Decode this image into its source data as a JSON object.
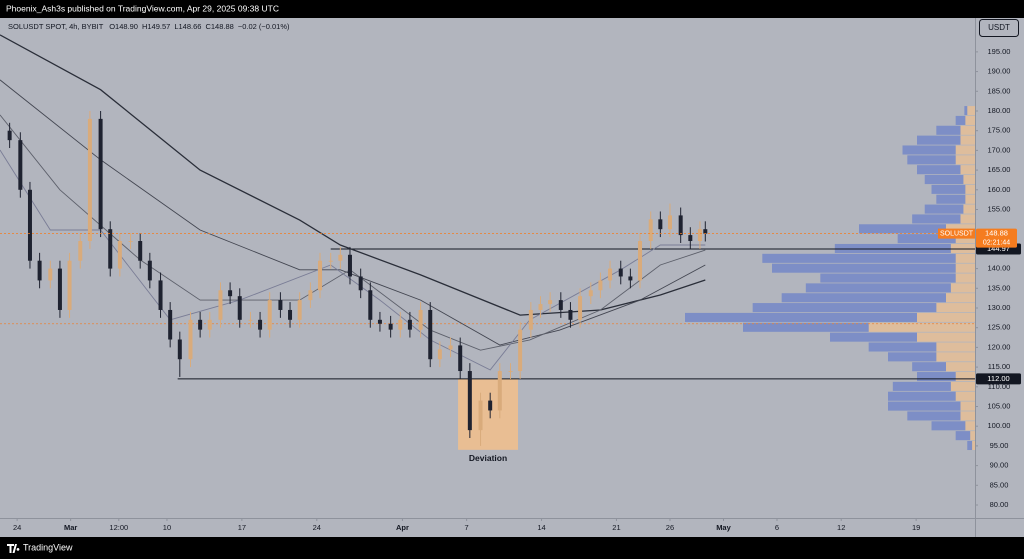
{
  "header": {
    "publisher": "Phoenix_Ash3s published on TradingView.com, Apr 29, 2025 09:38 UTC"
  },
  "legend": {
    "symbol": "SOLUSDT SPOT, 4h, BYBIT",
    "open": "O148.90",
    "high": "H149.57",
    "low": "L148.66",
    "close": "C148.88",
    "change": "−0.02 (−0.01%)"
  },
  "currency": "USDT",
  "footer": {
    "brand": "TradingView"
  },
  "chart_data": {
    "type": "candlestick",
    "up_color": "#d9ab7b",
    "down_color": "#1e2230",
    "x": [
      -0.7,
      0.3,
      1.2,
      2.1,
      3.1,
      4.0,
      4.9,
      5.9,
      6.8,
      7.8,
      8.7,
      9.6,
      10.6,
      11.5,
      12.4,
      13.4,
      14.3,
      15.2,
      16.2,
      17.1,
      18.0,
      19.0,
      19.9,
      20.8,
      21.8,
      22.7,
      23.6,
      24.6,
      25.5,
      26.4,
      27.4,
      28.3,
      29.3,
      30.2,
      31.1,
      32.1,
      33.0,
      33.9,
      34.9,
      35.8,
      36.7,
      37.7,
      38.6,
      39.5,
      40.5,
      41.4,
      42.3,
      43.3,
      44.2,
      45.1,
      46.1,
      47.0,
      48.0,
      48.9,
      49.8,
      50.8,
      51.7,
      52.6,
      53.6,
      54.5,
      55.4,
      56.4,
      57.3,
      58.2,
      59.2,
      60.1,
      61.0,
      62.0,
      62.9,
      63.8,
      64.3
    ],
    "open": [
      175,
      172.6,
      160,
      142,
      137,
      140,
      129.5,
      142,
      147,
      178,
      150,
      140,
      147,
      147,
      142,
      137,
      129.5,
      122,
      117,
      127,
      124.5,
      127,
      134.5,
      133,
      127,
      127,
      124.5,
      132,
      129.5,
      127,
      132,
      134.5,
      142,
      142,
      143.5,
      138,
      134.5,
      127,
      126,
      124.5,
      127,
      124.5,
      129.5,
      117,
      119.5,
      120.5,
      114,
      99,
      106.5,
      104,
      114,
      114,
      124.5,
      129.5,
      131,
      132,
      129.5,
      127,
      133,
      134.5,
      137,
      140,
      138,
      137,
      147,
      152.5,
      150,
      153.5,
      148.5,
      147,
      150
    ],
    "high": [
      177,
      174.6,
      162,
      144,
      142,
      142,
      144,
      149,
      180,
      180,
      152,
      149,
      149,
      149,
      144,
      139,
      131.5,
      124,
      129,
      129,
      129,
      136.5,
      136.5,
      135,
      129,
      129,
      134,
      134,
      131.5,
      134,
      136.5,
      144,
      144,
      145.5,
      145.5,
      140,
      136.5,
      129,
      128,
      129,
      129,
      131.5,
      131.5,
      121.5,
      122.5,
      122.5,
      116,
      108.5,
      108.5,
      116,
      116,
      126.5,
      131.5,
      133,
      134,
      134,
      131.5,
      135,
      136.5,
      139,
      142,
      142,
      140,
      149,
      154.5,
      154.5,
      156.5,
      155.5,
      150.5,
      152,
      152
    ],
    "low": [
      170.6,
      158,
      140,
      135,
      135,
      127.5,
      127.5,
      140,
      145,
      148,
      138,
      138,
      145,
      140,
      135,
      127.5,
      120,
      112.5,
      115,
      122.5,
      122.5,
      125,
      131,
      125,
      125,
      122.5,
      122.5,
      127.5,
      125,
      125,
      130,
      132.5,
      140,
      140,
      136,
      132.5,
      125,
      124,
      122.5,
      122.5,
      122.5,
      122.5,
      115,
      115,
      117.5,
      112,
      97,
      95,
      102,
      102,
      112,
      112,
      122.5,
      127.5,
      129,
      127.5,
      125,
      125,
      131,
      132.5,
      135,
      136,
      135,
      135,
      145,
      148,
      148,
      146.5,
      145,
      145,
      146.88
    ],
    "close": [
      172.6,
      160,
      142,
      137,
      140,
      129.5,
      142,
      147,
      178,
      150,
      140,
      147,
      147,
      142,
      137,
      129.5,
      122,
      117,
      127,
      124.5,
      127,
      134.5,
      133,
      127,
      127,
      124.5,
      132,
      129.5,
      127,
      132,
      134.5,
      142,
      142,
      143.5,
      138,
      134.5,
      127,
      126,
      124.5,
      127,
      124.5,
      129.5,
      117,
      119.5,
      120.5,
      114,
      99,
      106.5,
      104,
      114,
      114,
      124.5,
      129.5,
      131,
      132,
      129.5,
      127,
      133,
      134.5,
      137,
      140,
      138,
      137,
      147,
      152.5,
      150,
      153.5,
      148.5,
      147,
      150,
      148.88
    ],
    "xlim": [
      -1.6,
      89.5
    ],
    "xticks": [
      {
        "value": 0,
        "label": "24"
      },
      {
        "value": 5,
        "label": "Mar"
      },
      {
        "value": 9.5,
        "label": "12:00"
      },
      {
        "value": 14,
        "label": "10"
      },
      {
        "value": 21,
        "label": "17"
      },
      {
        "value": 28,
        "label": "24"
      },
      {
        "value": 36,
        "label": "Apr"
      },
      {
        "value": 42,
        "label": "7"
      },
      {
        "value": 49,
        "label": "14"
      },
      {
        "value": 56,
        "label": "21"
      },
      {
        "value": 61,
        "label": "26"
      },
      {
        "value": 66,
        "label": "May"
      },
      {
        "value": 71,
        "label": "6"
      },
      {
        "value": 77,
        "label": "12"
      },
      {
        "value": 84,
        "label": "19"
      }
    ],
    "ylim": [
      76.7,
      203.6
    ],
    "yticks": [
      {
        "value": 80,
        "label": "80.00"
      },
      {
        "value": 85,
        "label": "85.00"
      },
      {
        "value": 90,
        "label": "90.00"
      },
      {
        "value": 95,
        "label": "95.00"
      },
      {
        "value": 100,
        "label": "100.00"
      },
      {
        "value": 105,
        "label": "105.00"
      },
      {
        "value": 110,
        "label": "110.00"
      },
      {
        "value": 115,
        "label": "115.00"
      },
      {
        "value": 120,
        "label": "120.00"
      },
      {
        "value": 125,
        "label": "125.00"
      },
      {
        "value": 130,
        "label": "130.00"
      },
      {
        "value": 135,
        "label": "135.00"
      },
      {
        "value": 140,
        "label": "140.00"
      },
      {
        "value": 155,
        "label": "155.00"
      },
      {
        "value": 160,
        "label": "160.00"
      },
      {
        "value": 165,
        "label": "165.00"
      },
      {
        "value": 170,
        "label": "170.00"
      },
      {
        "value": 175,
        "label": "175.00"
      },
      {
        "value": 180,
        "label": "180.00"
      },
      {
        "value": 185,
        "label": "185.00"
      },
      {
        "value": 190,
        "label": "190.00"
      },
      {
        "value": 195,
        "label": "195.00"
      }
    ],
    "moving_averages": [
      {
        "color": "#2a2e39",
        "x": [
          -1.6,
          7.8,
          17.1,
          26.4,
          30.2,
          37.7,
          47.0,
          54.5,
          60.1,
          64.3
        ],
        "values": [
          199.3,
          185.4,
          165,
          152.3,
          146,
          138.4,
          128.2,
          129.5,
          133.3,
          137.1
        ]
      },
      {
        "color": "#434651",
        "x": [
          -1.6,
          7.8,
          17.1,
          26.4,
          30.2,
          37.7,
          45.1,
          50.7,
          58.2,
          64.3
        ],
        "values": [
          187.9,
          167.6,
          149.8,
          139.7,
          139.7,
          132,
          120.6,
          124.4,
          132,
          140.9
        ]
      },
      {
        "color": "#5d606b",
        "x": [
          -1.6,
          4.0,
          11.5,
          17.1,
          26.4,
          31.1,
          38.6,
          43.3,
          47.9,
          54.5,
          60.1,
          64.3
        ],
        "values": [
          179,
          160,
          142.2,
          132,
          132,
          139.7,
          124.4,
          119.3,
          121.9,
          129.5,
          140.9,
          144.7
        ]
      },
      {
        "color": "#7a7d96",
        "x": [
          -1.6,
          3.1,
          7.8,
          14.3,
          20.8,
          29.3,
          33.9,
          38.6,
          44.2,
          47.9,
          56.4,
          60.1,
          64.3
        ],
        "values": [
          170.1,
          149.8,
          149.8,
          127,
          132,
          140.9,
          132,
          121.9,
          114.3,
          127,
          139.7,
          146,
          146
        ]
      }
    ],
    "levels": [
      {
        "value": 144.97,
        "label": "144.97",
        "from": 29.3
      },
      {
        "value": 112,
        "label": "112.00",
        "from": 15.0
      }
    ],
    "current": {
      "label": "SOLUSDT",
      "value": 148.88,
      "countdown": "02:21:44",
      "color": "#f57c1f"
    },
    "poc": {
      "value": 126,
      "color": "#e8833a"
    },
    "zone": {
      "x": [
        41.2,
        46.8
      ],
      "y": [
        94,
        112
      ],
      "color": "#f2c08c",
      "label": "Deviation"
    },
    "volume_profile": {
      "prices": [
        95,
        97.5,
        100,
        102.5,
        105,
        107.5,
        110,
        112.5,
        115,
        117.5,
        120,
        122.5,
        125,
        127.5,
        130,
        132.5,
        135,
        137.5,
        140,
        142.5,
        145,
        147.5,
        150,
        152.5,
        155,
        157.5,
        160,
        162.5,
        165,
        167.5,
        170,
        172.5,
        175,
        177.5,
        180
      ],
      "xlim": [
        0,
        300
      ],
      "series": [
        {
          "color": "#e9bf94",
          "values": [
            3,
            5,
            10,
            15,
            15,
            20,
            25,
            20,
            30,
            40,
            40,
            60,
            110,
            60,
            40,
            30,
            25,
            20,
            20,
            20,
            25,
            20,
            30,
            15,
            12,
            10,
            10,
            12,
            15,
            20,
            20,
            15,
            15,
            10,
            8
          ]
        },
        {
          "color": "#6f85c8",
          "values": [
            5,
            15,
            35,
            55,
            75,
            70,
            60,
            40,
            35,
            50,
            70,
            90,
            130,
            240,
            190,
            170,
            150,
            140,
            190,
            200,
            120,
            60,
            90,
            50,
            40,
            30,
            35,
            40,
            45,
            50,
            55,
            45,
            25,
            10,
            3
          ]
        }
      ]
    }
  }
}
